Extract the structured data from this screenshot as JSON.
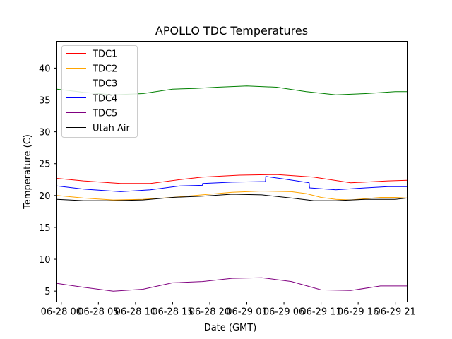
{
  "chart_data": {
    "type": "line",
    "title": "APOLLO TDC Temperatures",
    "xlabel": "Date (GMT)",
    "ylabel": "Temperature (C)",
    "xlim": [
      -0.6,
      46.6
    ],
    "ylim": [
      3.3,
      44.2
    ],
    "x_unit": "hours since 06-28 00:00 GMT",
    "xticks": [
      {
        "value": 0,
        "label": "06-28 00"
      },
      {
        "value": 5,
        "label": "06-28 05"
      },
      {
        "value": 10,
        "label": "06-28 10"
      },
      {
        "value": 15,
        "label": "06-28 15"
      },
      {
        "value": 20,
        "label": "06-28 20"
      },
      {
        "value": 25,
        "label": "06-29 01"
      },
      {
        "value": 30,
        "label": "06-29 06"
      },
      {
        "value": 35,
        "label": "06-29 11"
      },
      {
        "value": 40,
        "label": "06-29 16"
      },
      {
        "value": 45,
        "label": "06-29 21"
      }
    ],
    "yticks": [
      5,
      10,
      15,
      20,
      25,
      30,
      35,
      40
    ],
    "grid": false,
    "legend_position": "top-left",
    "series": [
      {
        "name": "TDC1",
        "color": "#ff0000",
        "x": [
          -0.6,
          3,
          8,
          12,
          16,
          19,
          24,
          29,
          34,
          39,
          44,
          46.6
        ],
        "values": [
          22.7,
          22.3,
          21.9,
          21.9,
          22.5,
          22.9,
          23.2,
          23.3,
          22.9,
          22.0,
          22.3,
          22.4
        ]
      },
      {
        "name": "TDC2",
        "color": "#ffa500",
        "x": [
          -0.6,
          3,
          7,
          11,
          15,
          19,
          23,
          27,
          31,
          33,
          35,
          37,
          39,
          41,
          43,
          45,
          46.6
        ],
        "values": [
          20.0,
          19.6,
          19.3,
          19.4,
          19.7,
          20.1,
          20.5,
          20.7,
          20.6,
          20.3,
          19.7,
          19.4,
          19.3,
          19.5,
          19.7,
          19.7,
          19.6
        ]
      },
      {
        "name": "TDC3",
        "color": "#008000",
        "x": [
          -0.6,
          3,
          7,
          11,
          15,
          18,
          21,
          25,
          29,
          33,
          37,
          41,
          45,
          46.6
        ],
        "values": [
          36.7,
          36.2,
          35.8,
          36.0,
          36.7,
          36.8,
          37.0,
          37.2,
          37.0,
          36.3,
          35.8,
          36.0,
          36.3,
          36.3
        ]
      },
      {
        "name": "TDC4",
        "color": "#0000ff",
        "x": [
          -0.6,
          3,
          8,
          12,
          16,
          19,
          19.05,
          23,
          27.5,
          27.55,
          30,
          33.4,
          33.45,
          37,
          41,
          44,
          46.6
        ],
        "values": [
          21.5,
          21.0,
          20.6,
          20.9,
          21.5,
          21.6,
          21.9,
          22.1,
          22.2,
          23.0,
          22.6,
          22.0,
          21.2,
          20.9,
          21.2,
          21.4,
          21.4
        ]
      },
      {
        "name": "TDC5",
        "color": "#800080",
        "x": [
          -0.6,
          3,
          7,
          11,
          15,
          19,
          23,
          27,
          31,
          35,
          39,
          43,
          46.6
        ],
        "values": [
          6.2,
          5.6,
          5.0,
          5.3,
          6.3,
          6.5,
          7.0,
          7.1,
          6.5,
          5.2,
          5.1,
          5.8,
          5.8
        ]
      },
      {
        "name": "Utah Air",
        "color": "#000000",
        "x": [
          -0.6,
          3,
          7,
          11,
          15,
          19,
          23,
          27,
          31,
          34,
          37,
          41,
          45,
          46.6
        ],
        "values": [
          19.4,
          19.2,
          19.2,
          19.3,
          19.7,
          19.9,
          20.2,
          20.1,
          19.6,
          19.2,
          19.2,
          19.4,
          19.4,
          19.6
        ]
      }
    ]
  }
}
